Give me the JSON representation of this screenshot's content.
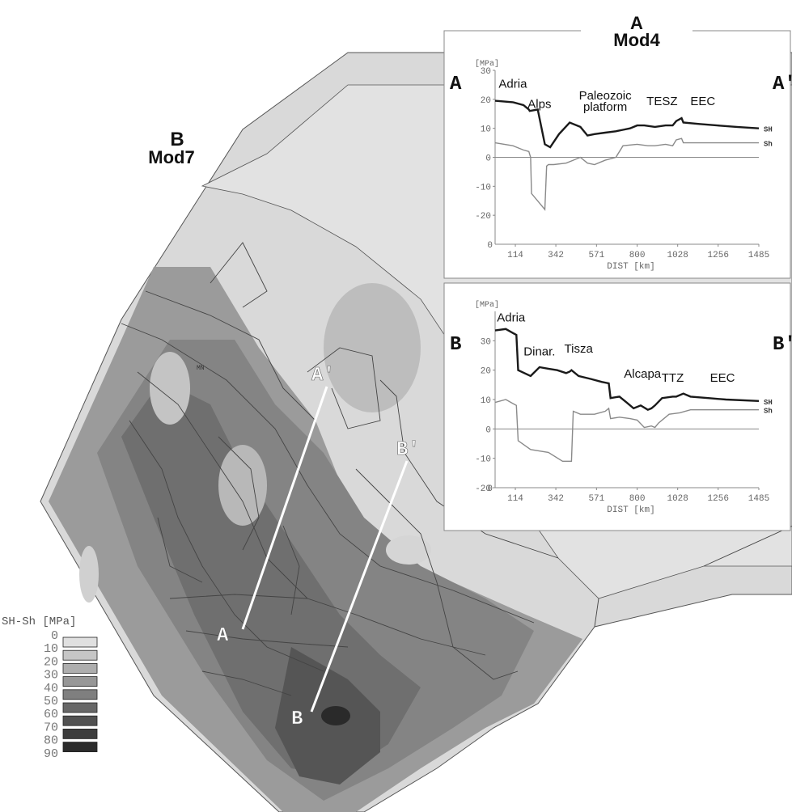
{
  "map": {
    "title": "B",
    "subtitle": "Mod7",
    "small_label": "MN",
    "profile_labels": {
      "a_start": "A",
      "a_end": "A'",
      "b_start": "B",
      "b_end": "B'"
    }
  },
  "legend": {
    "title": "SH-Sh [MPa]",
    "ticks": [
      "0",
      "10",
      "20",
      "30",
      "40",
      "50",
      "60",
      "70",
      "80",
      "90"
    ],
    "colors": [
      "#e0e0e0",
      "#c6c6c6",
      "#aeaeae",
      "#979797",
      "#7f7f7f",
      "#676767",
      "#515151",
      "#3d3d3d",
      "#2c2c2c"
    ]
  },
  "chart_data": [
    {
      "type": "line",
      "panel_title": "A",
      "panel_subtitle": "Mod4",
      "start_label": "A",
      "end_label": "A'",
      "ylabel": "[MPa]",
      "xlabel": "DIST [km]",
      "ylim": [
        -30,
        30
      ],
      "yticks": [
        30,
        20,
        10,
        0,
        -10,
        -20
      ],
      "xlim": [
        0,
        1485
      ],
      "xticks": [
        114,
        342,
        571,
        800,
        1028,
        1256,
        1485
      ],
      "regions": [
        {
          "name": "Adria",
          "x": 100,
          "y": 24
        },
        {
          "name": "Alps",
          "x": 250,
          "y": 17
        },
        {
          "name": "Paleozoic",
          "x": 620,
          "y": 20
        },
        {
          "name": "platform",
          "x": 620,
          "y": 16
        },
        {
          "name": "TESZ",
          "x": 940,
          "y": 18
        },
        {
          "name": "EEC",
          "x": 1170,
          "y": 18
        }
      ],
      "series": [
        {
          "name": "SH",
          "color": "#1a1a1a",
          "x": [
            0,
            100,
            160,
            190,
            195,
            240,
            280,
            310,
            360,
            420,
            480,
            520,
            560,
            620,
            680,
            720,
            760,
            800,
            840,
            900,
            960,
            1000,
            1020,
            1050,
            1060,
            1150,
            1250,
            1360,
            1485
          ],
          "y": [
            19.5,
            19,
            18,
            16.5,
            16,
            16.5,
            4.5,
            3.5,
            8,
            12,
            10.5,
            7.5,
            8,
            8.5,
            9,
            9.5,
            10,
            11,
            11,
            10.5,
            11,
            11,
            12.5,
            13.5,
            12,
            11.5,
            11,
            10.5,
            10
          ]
        },
        {
          "name": "Sh",
          "color": "#8a8a8a",
          "x": [
            0,
            100,
            160,
            190,
            200,
            205,
            280,
            290,
            300,
            330,
            400,
            440,
            480,
            520,
            560,
            620,
            680,
            720,
            800,
            860,
            900,
            960,
            1000,
            1020,
            1050,
            1060,
            1150,
            1300,
            1485
          ],
          "y": [
            5,
            4,
            2.5,
            2,
            0,
            -12.5,
            -18,
            -3,
            -2.5,
            -2.5,
            -2,
            -1,
            0,
            -2,
            -2.5,
            -1,
            0,
            4,
            4.5,
            4,
            4,
            4.5,
            4,
            6,
            6.5,
            5,
            5,
            5,
            5
          ]
        }
      ]
    },
    {
      "type": "line",
      "panel_title": "B",
      "panel_subtitle": "",
      "start_label": "B",
      "end_label": "B'",
      "ylabel": "[MPa]",
      "xlabel": "DIST [km]",
      "ylim": [
        -20,
        40
      ],
      "yticks": [
        30,
        20,
        10,
        0,
        -10,
        -20
      ],
      "xlim": [
        0,
        1485
      ],
      "xticks": [
        114,
        342,
        571,
        800,
        1028,
        1256,
        1485
      ],
      "regions": [
        {
          "name": "Adria",
          "x": 90,
          "y": 36.5
        },
        {
          "name": "Dinar.",
          "x": 250,
          "y": 25
        },
        {
          "name": "Tisza",
          "x": 470,
          "y": 26
        },
        {
          "name": "Alcapa",
          "x": 830,
          "y": 17.5
        },
        {
          "name": "TTZ",
          "x": 1000,
          "y": 16
        },
        {
          "name": "EEC",
          "x": 1280,
          "y": 16
        }
      ],
      "series": [
        {
          "name": "SH",
          "color": "#1a1a1a",
          "x": [
            0,
            60,
            120,
            130,
            200,
            250,
            300,
            350,
            400,
            420,
            430,
            470,
            540,
            600,
            640,
            650,
            700,
            740,
            780,
            820,
            860,
            880,
            900,
            940,
            1000,
            1020,
            1060,
            1100,
            1200,
            1300,
            1485
          ],
          "y": [
            33.5,
            34,
            32,
            20,
            18,
            21,
            20.5,
            20,
            19,
            19.5,
            20,
            18,
            17,
            16,
            15.5,
            10.5,
            11,
            9,
            7,
            8,
            6.5,
            7,
            8,
            10.5,
            11,
            11,
            12,
            11,
            10.5,
            10,
            9.5
          ]
        },
        {
          "name": "Sh",
          "color": "#8a8a8a",
          "x": [
            0,
            60,
            120,
            130,
            200,
            300,
            380,
            430,
            440,
            480,
            560,
            620,
            640,
            650,
            700,
            760,
            800,
            840,
            880,
            900,
            920,
            980,
            1040,
            1100,
            1300,
            1485
          ],
          "y": [
            9,
            10,
            8,
            -4,
            -7,
            -8,
            -11,
            -11,
            6,
            5,
            5,
            6,
            7,
            3.5,
            4,
            3.5,
            3,
            0.5,
            1,
            0.5,
            2,
            5,
            5.5,
            6.5,
            6.5,
            6.5
          ]
        }
      ]
    }
  ]
}
